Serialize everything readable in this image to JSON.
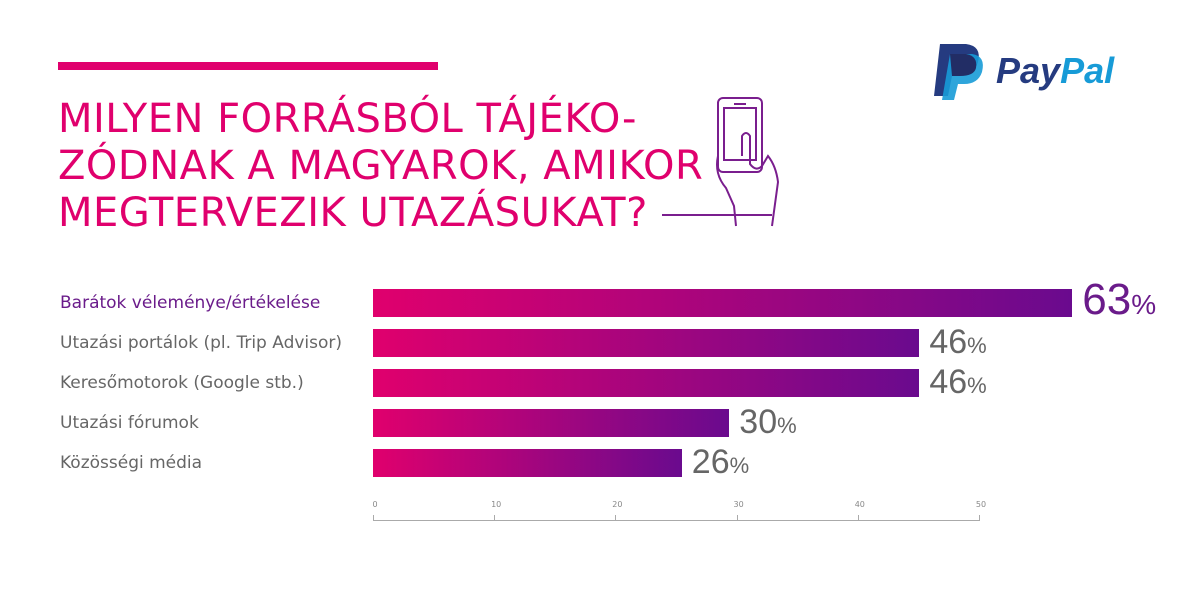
{
  "title_lines": [
    "MILYEN FORRÁSBÓL TÁJÉKO-",
    "ZÓDNAK A MAGYAROK, AMIKOR",
    "MEGTERVEZIK UTAZÁSUKAT?"
  ],
  "logo": {
    "text_pay": "Pay",
    "text_pal": "Pal",
    "colors": {
      "dark": "#253b80",
      "light": "#179bd7"
    }
  },
  "colors": {
    "accent": "#e0006d",
    "bar_start": "#e0006d",
    "bar_end": "#6a0a8e"
  },
  "chart_data": {
    "type": "bar",
    "orientation": "horizontal",
    "categories": [
      "Barátok véleménye/értékelése",
      "Utazási portálok (pl. Trip Advisor)",
      "Keresőmotorok (Google stb.)",
      "Utazási fórumok",
      "Közösségi média"
    ],
    "values": [
      63,
      46,
      46,
      30,
      26
    ],
    "value_labels": [
      "63",
      "46",
      "46",
      "30",
      "26"
    ],
    "unit": "%",
    "xlim": [
      0,
      50
    ],
    "xticks": [
      "0",
      "10",
      "20",
      "30",
      "40",
      "50"
    ],
    "title": "MILYEN FORRÁSBÓL TÁJÉKOZÓDNAK A MAGYAROK, AMIKOR MEGTERVEZIK UTAZÁSUKAT?",
    "grid": false
  }
}
